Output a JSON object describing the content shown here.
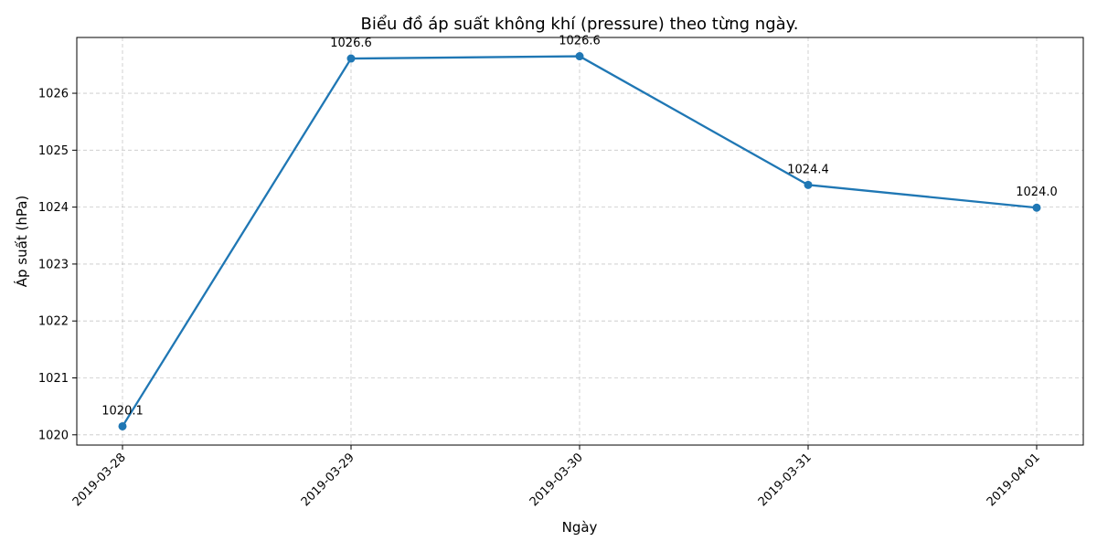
{
  "chart_data": {
    "type": "line",
    "title": "Biểu đồ áp suất không khí (pressure) theo từng ngày.",
    "xlabel": "Ngày",
    "ylabel": "Áp suất (hPa)",
    "categories": [
      "2019-03-28",
      "2019-03-29",
      "2019-03-30",
      "2019-03-31",
      "2019-04-01"
    ],
    "values": [
      1020.15,
      1026.61,
      1026.65,
      1024.39,
      1023.99
    ],
    "data_labels": [
      "1020.1",
      "1026.6",
      "1026.6",
      "1024.4",
      "1024.0"
    ],
    "yticks": [
      1020,
      1021,
      1022,
      1023,
      1024,
      1025,
      1026
    ],
    "ylim": [
      1019.82,
      1026.98
    ],
    "grid": true,
    "line_color": "#1f77b4",
    "grid_color": "#b0b0b0",
    "axis_color": "#000000"
  }
}
